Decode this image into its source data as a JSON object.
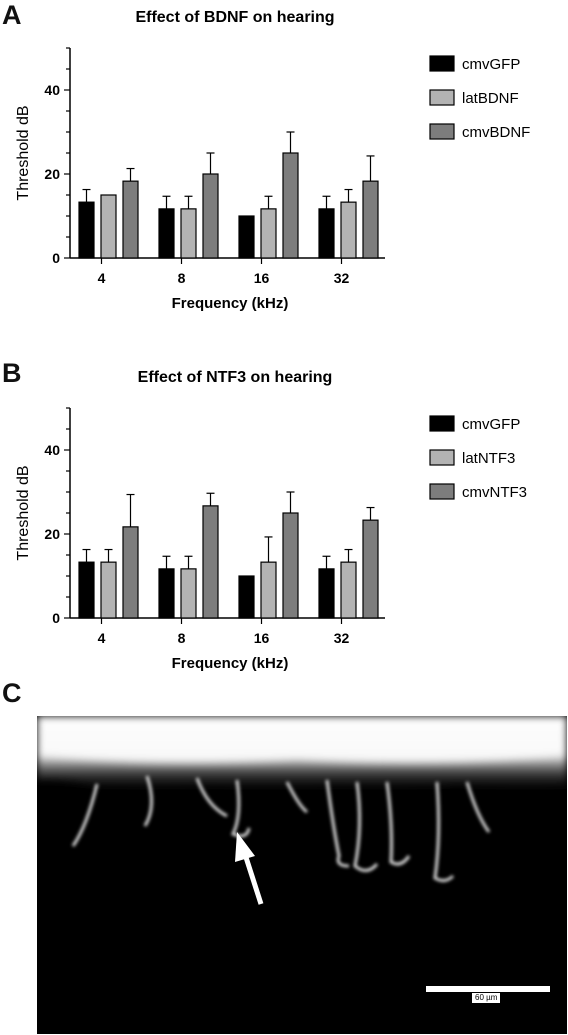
{
  "panels": {
    "a_letter": "A",
    "b_letter": "B",
    "c_letter": "C"
  },
  "chart_data": [
    {
      "type": "bar",
      "title": "Effect of BDNF on hearing",
      "xlabel": "Frequency (kHz)",
      "ylabel": "Threshold dB",
      "ylim": [
        0,
        50
      ],
      "yticks": [
        0,
        20,
        40
      ],
      "categories": [
        "4",
        "8",
        "16",
        "32"
      ],
      "legend_position": "top-right",
      "series": [
        {
          "name": "cmvGFP",
          "color": "#000000",
          "values": [
            13.3,
            11.7,
            10,
            11.7
          ],
          "errors": [
            3,
            3,
            0,
            3
          ]
        },
        {
          "name": "latBDNF",
          "color": "#b3b3b3",
          "values": [
            15,
            11.7,
            11.7,
            13.3
          ],
          "errors": [
            0,
            3,
            3,
            3
          ]
        },
        {
          "name": "cmvBDNF",
          "color": "#7d7d7d",
          "values": [
            18.3,
            20,
            25,
            18.3
          ],
          "errors": [
            3,
            5,
            5,
            6
          ]
        }
      ]
    },
    {
      "type": "bar",
      "title": "Effect of NTF3 on hearing",
      "xlabel": "Frequency (kHz)",
      "ylabel": "Threshold dB",
      "ylim": [
        0,
        50
      ],
      "yticks": [
        0,
        20,
        40
      ],
      "categories": [
        "4",
        "8",
        "16",
        "32"
      ],
      "legend_position": "top-right",
      "series": [
        {
          "name": "cmvGFP",
          "color": "#000000",
          "values": [
            13.3,
            11.7,
            10,
            11.7
          ],
          "errors": [
            3,
            3,
            0,
            3
          ]
        },
        {
          "name": "latNTF3",
          "color": "#b3b3b3",
          "values": [
            13.3,
            11.7,
            13.3,
            13.3
          ],
          "errors": [
            3,
            3,
            6,
            3
          ]
        },
        {
          "name": "cmvNTF3",
          "color": "#7d7d7d",
          "values": [
            21.7,
            26.7,
            25,
            23.3
          ],
          "errors": [
            7.7,
            3,
            5,
            3
          ]
        }
      ]
    }
  ],
  "micrograph": {
    "scale_label": "60 µm"
  }
}
